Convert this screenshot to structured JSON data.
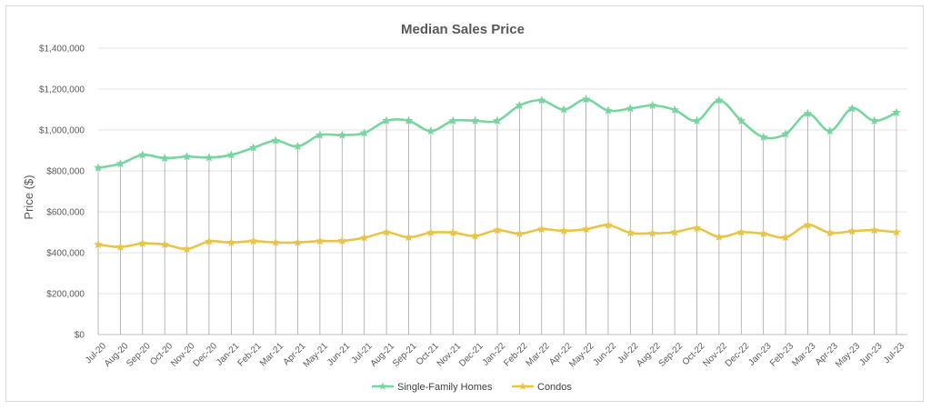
{
  "chart_data": {
    "type": "line",
    "title": "Median Sales Price",
    "xlabel": "",
    "ylabel": "Price ($)",
    "ylim": [
      0,
      1400000
    ],
    "yticks": [
      0,
      200000,
      400000,
      600000,
      800000,
      1000000,
      1200000,
      1400000
    ],
    "ytick_labels": [
      "$0",
      "$200,000",
      "$400,000",
      "$600,000",
      "$800,000",
      "$1,000,000",
      "$1,200,000",
      "$1,400,000"
    ],
    "grid": "horizontal",
    "legend_position": "bottom",
    "categories": [
      "Jul-20",
      "Aug-20",
      "Sep-20",
      "Oct-20",
      "Nov-20",
      "Dec-20",
      "Jan-21",
      "Feb-21",
      "Mar-21",
      "Apr-21",
      "May-21",
      "Jun-21",
      "Jul-21",
      "Aug-21",
      "Sep-21",
      "Oct-21",
      "Nov-21",
      "Dec-21",
      "Jan-22",
      "Feb-22",
      "Mar-22",
      "Apr-22",
      "May-22",
      "Jun-22",
      "Jul-22",
      "Aug-22",
      "Sep-22",
      "Oct-22",
      "Nov-22",
      "Dec-22",
      "Jan-23",
      "Feb-23",
      "Mar-23",
      "Apr-23",
      "May-23",
      "Jun-23",
      "Jul-23"
    ],
    "series": [
      {
        "name": "Single-Family Homes",
        "color": "#77d5a0",
        "marker": "star",
        "values": [
          815000,
          835000,
          878000,
          862000,
          870000,
          865000,
          878000,
          913000,
          948000,
          920000,
          975000,
          975000,
          985000,
          1045000,
          1045000,
          995000,
          1045000,
          1045000,
          1045000,
          1120000,
          1145000,
          1100000,
          1150000,
          1095000,
          1105000,
          1120000,
          1098000,
          1045000,
          1145000,
          1045000,
          965000,
          980000,
          1080000,
          995000,
          1105000,
          1045000,
          1085000
        ]
      },
      {
        "name": "Condos",
        "color": "#e8c547",
        "marker": "star",
        "values": [
          440000,
          428000,
          445000,
          440000,
          418000,
          455000,
          450000,
          457000,
          450000,
          450000,
          457000,
          458000,
          473000,
          500000,
          475000,
          498000,
          498000,
          482000,
          510000,
          493000,
          515000,
          507000,
          515000,
          535000,
          497000,
          495000,
          500000,
          520000,
          477000,
          500000,
          493000,
          475000,
          535000,
          497000,
          505000,
          510000,
          500000
        ]
      }
    ]
  }
}
